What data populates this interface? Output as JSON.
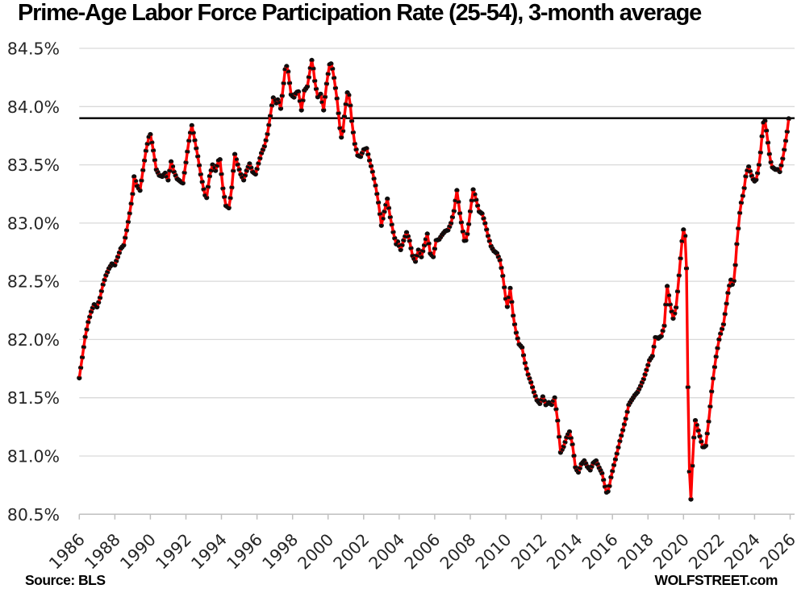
{
  "title": "Prime-Age Labor Force Participation Rate (25-54), 3-month average",
  "source_label": "Source: BLS",
  "branding": "WOLFSTREET.com",
  "chart_data": {
    "type": "line",
    "title": "Prime-Age Labor Force Participation Rate (25-54), 3-month average",
    "xlabel": "",
    "ylabel": "",
    "xlim": [
      1986,
      2026
    ],
    "ylim": [
      80.5,
      84.5
    ],
    "y_tick_step": 0.5,
    "y_tick_labels": [
      "84.5%",
      "84.0%",
      "83.5%",
      "83.0%",
      "82.5%",
      "82.0%",
      "81.5%",
      "81.0%",
      "80.5%"
    ],
    "x_tick_labels": [
      "1986",
      "1988",
      "1990",
      "1992",
      "1994",
      "1996",
      "1998",
      "2000",
      "2002",
      "2004",
      "2006",
      "2008",
      "2010",
      "2012",
      "2014",
      "2016",
      "2018",
      "2020",
      "2022",
      "2024",
      "2026"
    ],
    "reference_line_value": 83.9,
    "grid": true,
    "legend": "none",
    "line_color": "#FE0000",
    "marker_color": "#0D0D0D",
    "grid_color": "#D9D9D9",
    "axis_color": "#BFBFBF",
    "reference_line_color": "#000000",
    "marker_interval_months": 1,
    "series": [
      {
        "name": "Prime-age labor force participation rate, 3-month average (%)",
        "points": [
          [
            1986.0,
            81.67
          ],
          [
            1986.17,
            81.85
          ],
          [
            1986.33,
            82.02
          ],
          [
            1986.5,
            82.15
          ],
          [
            1986.67,
            82.24
          ],
          [
            1986.83,
            82.3
          ],
          [
            1987.0,
            82.28
          ],
          [
            1987.17,
            82.36
          ],
          [
            1987.33,
            82.47
          ],
          [
            1987.5,
            82.55
          ],
          [
            1987.67,
            82.61
          ],
          [
            1987.83,
            82.65
          ],
          [
            1988.0,
            82.64
          ],
          [
            1988.17,
            82.71
          ],
          [
            1988.33,
            82.78
          ],
          [
            1988.5,
            82.81
          ],
          [
            1988.67,
            82.94
          ],
          [
            1988.83,
            83.08
          ],
          [
            1989.0,
            83.25
          ],
          [
            1989.08,
            83.4
          ],
          [
            1989.25,
            83.32
          ],
          [
            1989.42,
            83.28
          ],
          [
            1989.58,
            83.45
          ],
          [
            1989.75,
            83.62
          ],
          [
            1989.92,
            83.74
          ],
          [
            1990.0,
            83.76
          ],
          [
            1990.17,
            83.62
          ],
          [
            1990.33,
            83.46
          ],
          [
            1990.5,
            83.41
          ],
          [
            1990.67,
            83.4
          ],
          [
            1990.83,
            83.43
          ],
          [
            1991.0,
            83.37
          ],
          [
            1991.17,
            83.53
          ],
          [
            1991.33,
            83.44
          ],
          [
            1991.5,
            83.38
          ],
          [
            1991.67,
            83.36
          ],
          [
            1991.83,
            83.34
          ],
          [
            1992.0,
            83.52
          ],
          [
            1992.17,
            83.71
          ],
          [
            1992.33,
            83.84
          ],
          [
            1992.5,
            83.71
          ],
          [
            1992.67,
            83.57
          ],
          [
            1992.83,
            83.42
          ],
          [
            1993.0,
            83.29
          ],
          [
            1993.15,
            83.2
          ],
          [
            1993.33,
            83.4
          ],
          [
            1993.5,
            83.5
          ],
          [
            1993.67,
            83.45
          ],
          [
            1993.9,
            83.57
          ],
          [
            1994.08,
            83.3
          ],
          [
            1994.25,
            83.15
          ],
          [
            1994.42,
            83.13
          ],
          [
            1994.58,
            83.3
          ],
          [
            1994.75,
            83.59
          ],
          [
            1994.92,
            83.5
          ],
          [
            1995.08,
            83.42
          ],
          [
            1995.25,
            83.37
          ],
          [
            1995.42,
            83.45
          ],
          [
            1995.58,
            83.51
          ],
          [
            1995.75,
            83.44
          ],
          [
            1995.92,
            83.42
          ],
          [
            1996.08,
            83.51
          ],
          [
            1996.25,
            83.6
          ],
          [
            1996.42,
            83.66
          ],
          [
            1996.58,
            83.76
          ],
          [
            1996.75,
            83.92
          ],
          [
            1996.9,
            84.08
          ],
          [
            1997.08,
            84.03
          ],
          [
            1997.2,
            84.07
          ],
          [
            1997.33,
            83.98
          ],
          [
            1997.5,
            84.2
          ],
          [
            1997.62,
            84.37
          ],
          [
            1997.75,
            84.3
          ],
          [
            1997.92,
            84.1
          ],
          [
            1998.08,
            84.08
          ],
          [
            1998.2,
            84.12
          ],
          [
            1998.33,
            84.13
          ],
          [
            1998.5,
            83.97
          ],
          [
            1998.67,
            84.14
          ],
          [
            1998.83,
            84.17
          ],
          [
            1999.0,
            84.33
          ],
          [
            1999.1,
            84.41
          ],
          [
            1999.25,
            84.22
          ],
          [
            1999.42,
            84.08
          ],
          [
            1999.58,
            84.11
          ],
          [
            1999.75,
            83.97
          ],
          [
            1999.92,
            84.2
          ],
          [
            2000.08,
            84.36
          ],
          [
            2000.2,
            84.37
          ],
          [
            2000.33,
            84.25
          ],
          [
            2000.5,
            84.07
          ],
          [
            2000.67,
            83.81
          ],
          [
            2000.78,
            83.71
          ],
          [
            2000.92,
            83.92
          ],
          [
            2001.08,
            84.12
          ],
          [
            2001.2,
            84.09
          ],
          [
            2001.33,
            83.88
          ],
          [
            2001.5,
            83.68
          ],
          [
            2001.67,
            83.58
          ],
          [
            2001.83,
            83.57
          ],
          [
            2002.0,
            83.63
          ],
          [
            2002.17,
            83.64
          ],
          [
            2002.33,
            83.54
          ],
          [
            2002.5,
            83.44
          ],
          [
            2002.67,
            83.32
          ],
          [
            2002.83,
            83.18
          ],
          [
            2003.0,
            82.98
          ],
          [
            2003.17,
            83.1
          ],
          [
            2003.33,
            83.21
          ],
          [
            2003.5,
            83.05
          ],
          [
            2003.67,
            82.92
          ],
          [
            2003.83,
            82.82
          ],
          [
            2003.92,
            82.84
          ],
          [
            2004.08,
            82.77
          ],
          [
            2004.25,
            82.85
          ],
          [
            2004.42,
            82.92
          ],
          [
            2004.58,
            82.85
          ],
          [
            2004.75,
            82.72
          ],
          [
            2004.92,
            82.67
          ],
          [
            2005.08,
            82.77
          ],
          [
            2005.25,
            82.71
          ],
          [
            2005.42,
            82.81
          ],
          [
            2005.58,
            82.91
          ],
          [
            2005.75,
            82.74
          ],
          [
            2005.92,
            82.71
          ],
          [
            2006.08,
            82.85
          ],
          [
            2006.25,
            82.86
          ],
          [
            2006.42,
            82.9
          ],
          [
            2006.58,
            82.93
          ],
          [
            2006.75,
            82.94
          ],
          [
            2006.92,
            83.0
          ],
          [
            2007.08,
            83.1
          ],
          [
            2007.25,
            83.28
          ],
          [
            2007.42,
            83.08
          ],
          [
            2007.58,
            82.93
          ],
          [
            2007.7,
            82.82
          ],
          [
            2007.87,
            82.93
          ],
          [
            2008.0,
            83.1
          ],
          [
            2008.17,
            83.29
          ],
          [
            2008.33,
            83.2
          ],
          [
            2008.5,
            83.1
          ],
          [
            2008.67,
            83.08
          ],
          [
            2008.83,
            83.0
          ],
          [
            2009.0,
            82.89
          ],
          [
            2009.17,
            82.8
          ],
          [
            2009.33,
            82.76
          ],
          [
            2009.5,
            82.74
          ],
          [
            2009.67,
            82.68
          ],
          [
            2009.83,
            82.55
          ],
          [
            2010.0,
            82.35
          ],
          [
            2010.08,
            82.28
          ],
          [
            2010.25,
            82.44
          ],
          [
            2010.42,
            82.2
          ],
          [
            2010.58,
            82.06
          ],
          [
            2010.75,
            81.96
          ],
          [
            2010.92,
            81.93
          ],
          [
            2011.08,
            81.8
          ],
          [
            2011.25,
            81.7
          ],
          [
            2011.42,
            81.63
          ],
          [
            2011.58,
            81.55
          ],
          [
            2011.75,
            81.48
          ],
          [
            2011.92,
            81.45
          ],
          [
            2012.08,
            81.51
          ],
          [
            2012.25,
            81.44
          ],
          [
            2012.42,
            81.46
          ],
          [
            2012.58,
            81.44
          ],
          [
            2012.75,
            81.5
          ],
          [
            2012.92,
            81.3
          ],
          [
            2013.08,
            81.03
          ],
          [
            2013.25,
            81.08
          ],
          [
            2013.42,
            81.16
          ],
          [
            2013.58,
            81.21
          ],
          [
            2013.75,
            81.1
          ],
          [
            2013.92,
            80.9
          ],
          [
            2014.08,
            80.86
          ],
          [
            2014.25,
            80.93
          ],
          [
            2014.42,
            80.96
          ],
          [
            2014.58,
            80.91
          ],
          [
            2014.75,
            80.88
          ],
          [
            2014.92,
            80.94
          ],
          [
            2015.08,
            80.96
          ],
          [
            2015.25,
            80.9
          ],
          [
            2015.42,
            80.85
          ],
          [
            2015.58,
            80.74
          ],
          [
            2015.7,
            80.67
          ],
          [
            2015.83,
            80.74
          ],
          [
            2015.92,
            80.82
          ],
          [
            2016.08,
            80.92
          ],
          [
            2016.25,
            81.02
          ],
          [
            2016.42,
            81.13
          ],
          [
            2016.58,
            81.22
          ],
          [
            2016.75,
            81.32
          ],
          [
            2016.92,
            81.44
          ],
          [
            2017.08,
            81.48
          ],
          [
            2017.25,
            81.52
          ],
          [
            2017.42,
            81.55
          ],
          [
            2017.58,
            81.6
          ],
          [
            2017.75,
            81.66
          ],
          [
            2017.92,
            81.74
          ],
          [
            2018.08,
            81.82
          ],
          [
            2018.25,
            81.86
          ],
          [
            2018.42,
            82.02
          ],
          [
            2018.58,
            82.01
          ],
          [
            2018.75,
            82.03
          ],
          [
            2018.92,
            82.12
          ],
          [
            2019.0,
            82.3
          ],
          [
            2019.08,
            82.46
          ],
          [
            2019.25,
            82.3
          ],
          [
            2019.42,
            82.18
          ],
          [
            2019.58,
            82.27
          ],
          [
            2019.75,
            82.55
          ],
          [
            2019.92,
            82.85
          ],
          [
            2020.05,
            83.0
          ],
          [
            2020.17,
            82.6
          ],
          [
            2020.3,
            80.96
          ],
          [
            2020.42,
            80.62
          ],
          [
            2020.55,
            81.1
          ],
          [
            2020.67,
            81.31
          ],
          [
            2020.83,
            81.22
          ],
          [
            2020.95,
            81.15
          ],
          [
            2021.1,
            81.07
          ],
          [
            2021.25,
            81.09
          ],
          [
            2021.42,
            81.3
          ],
          [
            2021.58,
            81.55
          ],
          [
            2021.7,
            81.71
          ],
          [
            2021.83,
            81.85
          ],
          [
            2022.0,
            82.0
          ],
          [
            2022.1,
            82.06
          ],
          [
            2022.25,
            82.13
          ],
          [
            2022.4,
            82.29
          ],
          [
            2022.5,
            82.4
          ],
          [
            2022.58,
            82.46
          ],
          [
            2022.7,
            82.53
          ],
          [
            2022.78,
            82.44
          ],
          [
            2022.88,
            82.56
          ],
          [
            2023.0,
            82.82
          ],
          [
            2023.1,
            82.98
          ],
          [
            2023.2,
            83.14
          ],
          [
            2023.4,
            83.28
          ],
          [
            2023.5,
            83.4
          ],
          [
            2023.65,
            83.49
          ],
          [
            2023.8,
            83.42
          ],
          [
            2023.9,
            83.38
          ],
          [
            2024.05,
            83.35
          ],
          [
            2024.2,
            83.45
          ],
          [
            2024.3,
            83.55
          ],
          [
            2024.42,
            83.75
          ],
          [
            2024.5,
            83.86
          ],
          [
            2024.58,
            83.88
          ],
          [
            2024.7,
            83.76
          ],
          [
            2024.8,
            83.62
          ],
          [
            2024.92,
            83.52
          ],
          [
            2025.0,
            83.48
          ],
          [
            2025.17,
            83.46
          ],
          [
            2025.33,
            83.46
          ],
          [
            2025.42,
            83.44
          ],
          [
            2025.58,
            83.55
          ],
          [
            2025.7,
            83.66
          ],
          [
            2025.83,
            83.78
          ],
          [
            2025.92,
            83.9
          ]
        ]
      }
    ]
  }
}
